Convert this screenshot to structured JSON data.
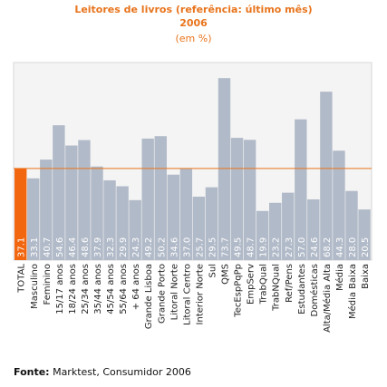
{
  "chart_data": {
    "type": "bar",
    "title": "Leitores de livros (referência: último mês)",
    "subtitle": "2006",
    "unit": "(em %)",
    "categories": [
      "TOTAL",
      "Masculino",
      "Feminino",
      "15/17 anos",
      "18/24 anos",
      "25/34 anos",
      "35/44 anos",
      "45/54 anos",
      "55/64 anos",
      "+ 64 anos",
      "Grande Lisboa",
      "Grande Porto",
      "Litoral Norte",
      "Litoral Centro",
      "Interior Norte",
      "Sul",
      "QMS",
      "TecEspPqPp",
      "EmpServ",
      "TrabQual",
      "TrabNQual",
      "Ref/Pens",
      "Estudantes",
      "Domésticas",
      "Alta/Média Alta",
      "Média",
      "Média Baixa",
      "Baixa"
    ],
    "values": [
      37.1,
      33.1,
      40.7,
      54.6,
      46.4,
      48.6,
      37.9,
      32.3,
      29.9,
      24.3,
      49.2,
      50.2,
      34.6,
      37.0,
      25.7,
      29.5,
      73.7,
      49.5,
      48.7,
      19.9,
      23.2,
      27.3,
      57.0,
      24.6,
      68.2,
      44.3,
      28.0,
      20.5
    ],
    "value_labels": [
      "37.1",
      "33.1",
      "40.7",
      "54.6",
      "46.4",
      "48.6",
      "37.9",
      "32.3",
      "29.9",
      "24.3",
      "49.2",
      "50.2",
      "34.6",
      "37.0",
      "25.7",
      "29.5",
      "73.7",
      "49.5",
      "48.7",
      "19.9",
      "23.2",
      "27.3",
      "57.0",
      "24.6",
      "68.2",
      "44.3",
      "28.0",
      "20.5"
    ],
    "reference_line": 37.1,
    "ylim": [
      0,
      80
    ],
    "grid": false,
    "colors": {
      "bar": "#b1bac8",
      "highlight_bar": "#f2660f",
      "reference_line": "#e8741c",
      "plot_background": "#f4f4f4",
      "plot_border": "#d7d7d7",
      "title": "#e8741c"
    }
  },
  "source": {
    "label": "Fonte:",
    "text": " Marktest, Consumidor 2006"
  }
}
